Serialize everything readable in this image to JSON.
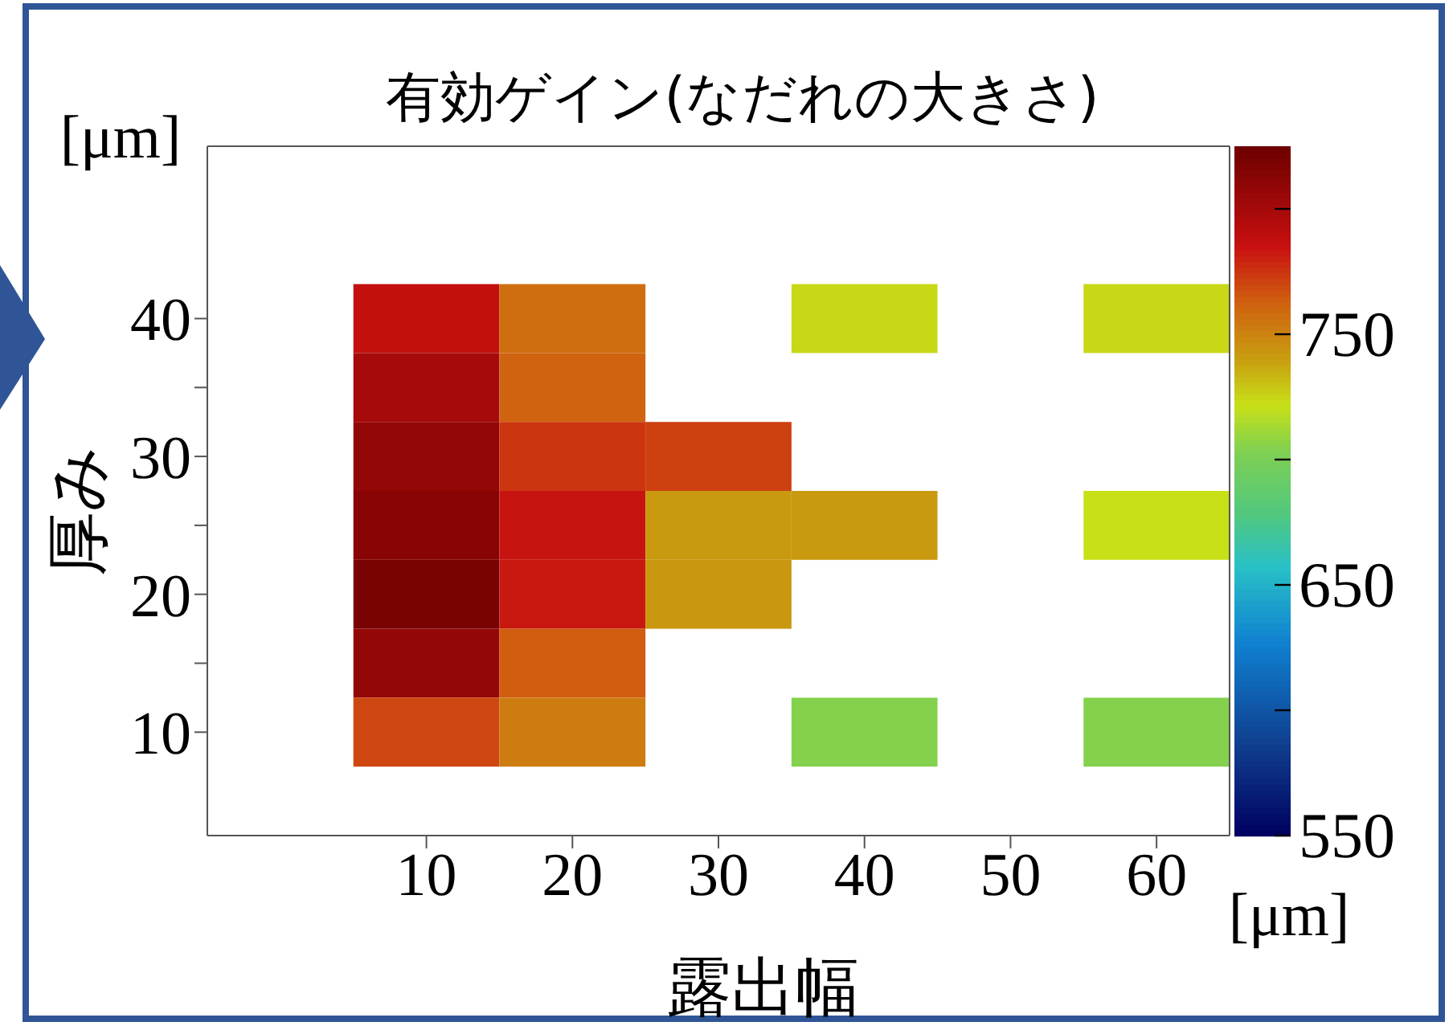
{
  "chart_data": {
    "type": "heatmap",
    "title": "有効ゲイン(なだれの大きさ)",
    "xlabel": "露出幅",
    "ylabel": "厚み",
    "annotations": [
      "[μm]",
      "[μm]"
    ],
    "categories": [
      "10",
      "20",
      "30",
      "40",
      "50",
      "60"
    ],
    "y_categories": [
      "40",
      null,
      "30",
      null,
      "20",
      null,
      "10"
    ],
    "cells": [
      [
        787,
        758,
        null,
        724,
        null,
        724
      ],
      [
        800,
        762,
        null,
        null,
        null,
        null
      ],
      [
        808,
        775,
        772,
        null,
        null,
        null
      ],
      [
        813,
        784,
        742,
        742,
        null,
        722
      ],
      [
        820,
        783,
        743,
        null,
        null,
        null
      ],
      [
        808,
        764,
        null,
        null,
        null,
        null
      ],
      [
        770,
        753,
        null,
        705,
        null,
        705
      ]
    ],
    "clim": [
      550,
      825
    ],
    "cticks": [
      550,
      {
        "value": 600,
        "label": null
      },
      650,
      {
        "value": 700,
        "label": null
      },
      750,
      {
        "value": 800,
        "label": null
      }
    ]
  }
}
